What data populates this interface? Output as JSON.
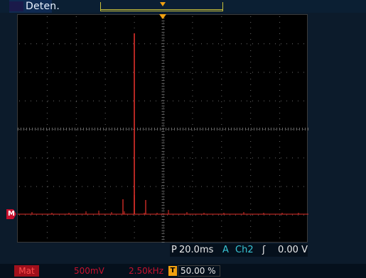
{
  "status": {
    "label": "Deten."
  },
  "readout": {
    "timebase_prefix": "P",
    "timebase": "20.0ms",
    "trigger_mode": "A",
    "trigger_source": "Ch2",
    "trigger_slope_glyph": "ʃ",
    "trigger_level": "0.00 V"
  },
  "channel_marker": {
    "label": "M"
  },
  "footer": {
    "math_label": "Mat",
    "scale": "500mV",
    "frequency": "2.50kHz",
    "trigger_icon": "T",
    "trigger_position": "50.00 %"
  },
  "colors": {
    "trace": "#e0302a",
    "trigger": "#f0a010",
    "graticule_dots": "#6a6a6a",
    "readout_cyan": "#39c6d6"
  },
  "icons": {
    "trigger_marker": "trigger-position-icon",
    "channel_marker": "math-channel-icon",
    "trigger_slope": "rising-edge-icon"
  }
}
